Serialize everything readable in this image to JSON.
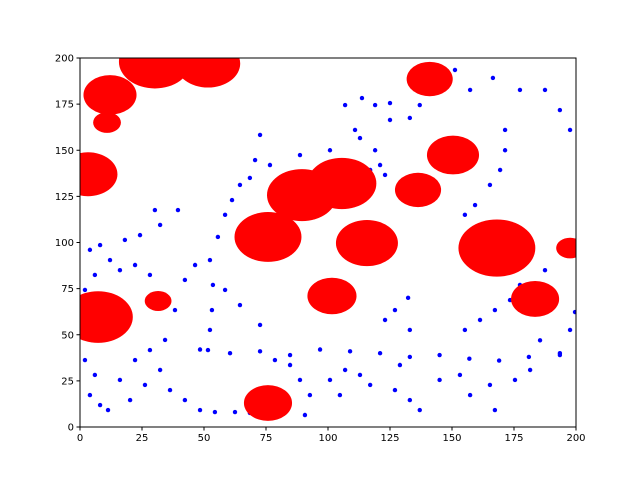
{
  "chart_data": {
    "type": "scatter",
    "xlim": [
      0,
      200
    ],
    "ylim": [
      0,
      200
    ],
    "xticks": [
      0,
      25,
      50,
      75,
      100,
      125,
      150,
      175,
      200
    ],
    "yticks": [
      0,
      25,
      50,
      75,
      100,
      125,
      150,
      175,
      200
    ],
    "series": [
      {
        "color": "#0000ff",
        "marker": "point",
        "x": [
          72.6,
          70.6,
          68.5,
          64.5,
          61.3,
          58.5,
          55.6,
          52.4,
          53.6,
          53.2,
          52.4,
          51.6,
          48.4,
          60.5,
          72.6,
          84.7,
          96.8,
          108.9,
          121,
          133,
          145,
          157,
          169,
          181,
          193.5,
          76.6,
          88.7,
          100.8,
          112.9,
          125,
          133,
          106.9,
          113.7,
          125,
          137,
          151.2,
          157.3,
          166.5,
          177.4,
          187.5,
          193.5,
          197.6,
          171.4,
          171.4,
          169.4,
          165.3,
          159.3,
          155.2,
          119,
          121,
          123,
          155.2,
          161.3,
          167.3,
          173.4,
          177.4,
          187.5,
          185.5,
          193.5,
          197.6,
          199.6,
          123,
          127,
          132.3,
          133,
          129,
          127,
          133,
          137,
          145,
          153.2,
          157.3,
          165.3,
          167.3,
          175.4,
          181.5,
          100.8,
          106.9,
          112.9,
          117,
          104.8,
          92.7,
          88.7,
          90.7,
          84.7,
          78.6,
          4,
          8.1,
          12.1,
          6,
          2,
          4.8,
          2,
          6,
          4,
          8.1,
          11.3,
          16.1,
          22.2,
          28.2,
          34.3,
          32.3,
          36.3,
          42.3,
          48.4,
          54.4,
          62.5,
          68.5,
          26.2,
          20.2,
          18.1,
          24.2,
          16.1,
          22.2,
          28.2,
          30.2,
          32.3,
          39.5,
          46.4,
          42.3,
          58.5,
          64.5,
          72.6,
          38.3,
          117,
          110.9,
          119
        ],
        "values": [
          158.3,
          144.7,
          135,
          131.2,
          123,
          115,
          103,
          90.5,
          77,
          63.4,
          52.6,
          41.7,
          42,
          40,
          41,
          39,
          42,
          41,
          40,
          38,
          39,
          37,
          36,
          38,
          40,
          142,
          147.4,
          150,
          156.6,
          166.4,
          167.5,
          174.5,
          178.3,
          175.6,
          174.5,
          193.5,
          182.7,
          189.2,
          182.7,
          182.7,
          171.8,
          161,
          161,
          150,
          139.3,
          131.2,
          120.3,
          115,
          150,
          142,
          136.6,
          52.6,
          58,
          63.4,
          68.8,
          77,
          85,
          47,
          39,
          52.6,
          62.3,
          58,
          63.4,
          70,
          52.6,
          33.6,
          20,
          14.6,
          9.2,
          25.5,
          28.2,
          17.3,
          22.8,
          9.2,
          25.5,
          30.9,
          25.5,
          30.9,
          28.2,
          22.8,
          17.3,
          17.3,
          25.5,
          6.5,
          33.6,
          36.3,
          96,
          98.6,
          90.5,
          82.4,
          74.3,
          47.2,
          36.3,
          28.2,
          17.3,
          11.9,
          9.2,
          25.5,
          36.3,
          41.7,
          47.2,
          30.9,
          20,
          14.6,
          9.2,
          8.1,
          8.1,
          7.6,
          22.8,
          14.6,
          101.4,
          104,
          85,
          87.8,
          82.4,
          117.6,
          109.5,
          117.6,
          87.8,
          79.7,
          74.3,
          66.1,
          55.3,
          63.4,
          139.3,
          161,
          174.5
        ]
      },
      {
        "color": "#ff0000",
        "marker": "circle",
        "x": [
          30.2,
          51.6,
          12.1,
          10.9,
          3.2,
          141,
          150.4,
          136.3,
          105.6,
          89.5,
          75.8,
          115.7,
          168.1,
          197.6,
          101.6,
          31.5,
          7.3,
          183.5,
          75.8
        ],
        "values": [
          198,
          197,
          180,
          165,
          137,
          188.6,
          147.4,
          128.5,
          132,
          125.7,
          103,
          99.7,
          97,
          97,
          71,
          68.3,
          59.6,
          69.4,
          13
        ],
        "sizes": [
          14.5,
          13,
          10.7,
          5.6,
          11.9,
          9.3,
          10.5,
          9.3,
          13.9,
          14.1,
          13.5,
          12.5,
          15.5,
          5.6,
          9.9,
          5.4,
          14,
          9.7,
          9.7
        ]
      }
    ]
  }
}
